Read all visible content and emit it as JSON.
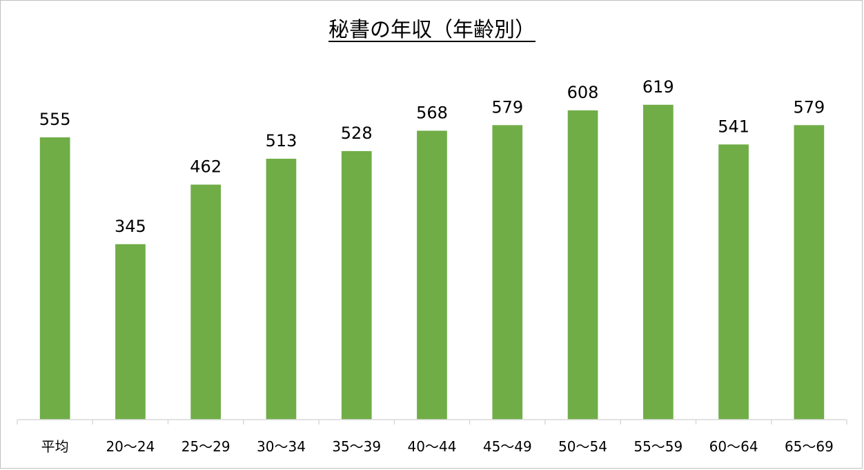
{
  "chart_data": {
    "type": "bar",
    "title": "秘書の年収（年齢別）",
    "categories": [
      "平均",
      "20〜24",
      "25〜29",
      "30〜34",
      "35〜39",
      "40〜44",
      "45〜49",
      "50〜54",
      "55〜59",
      "60〜64",
      "65〜69"
    ],
    "values": [
      555,
      345,
      462,
      513,
      528,
      568,
      579,
      608,
      619,
      541,
      579
    ],
    "xlabel": "",
    "ylabel": "",
    "ylim": [
      0,
      750
    ],
    "grid": false,
    "legend": "none",
    "bar_color": "#70ad47",
    "data_labels": true
  }
}
